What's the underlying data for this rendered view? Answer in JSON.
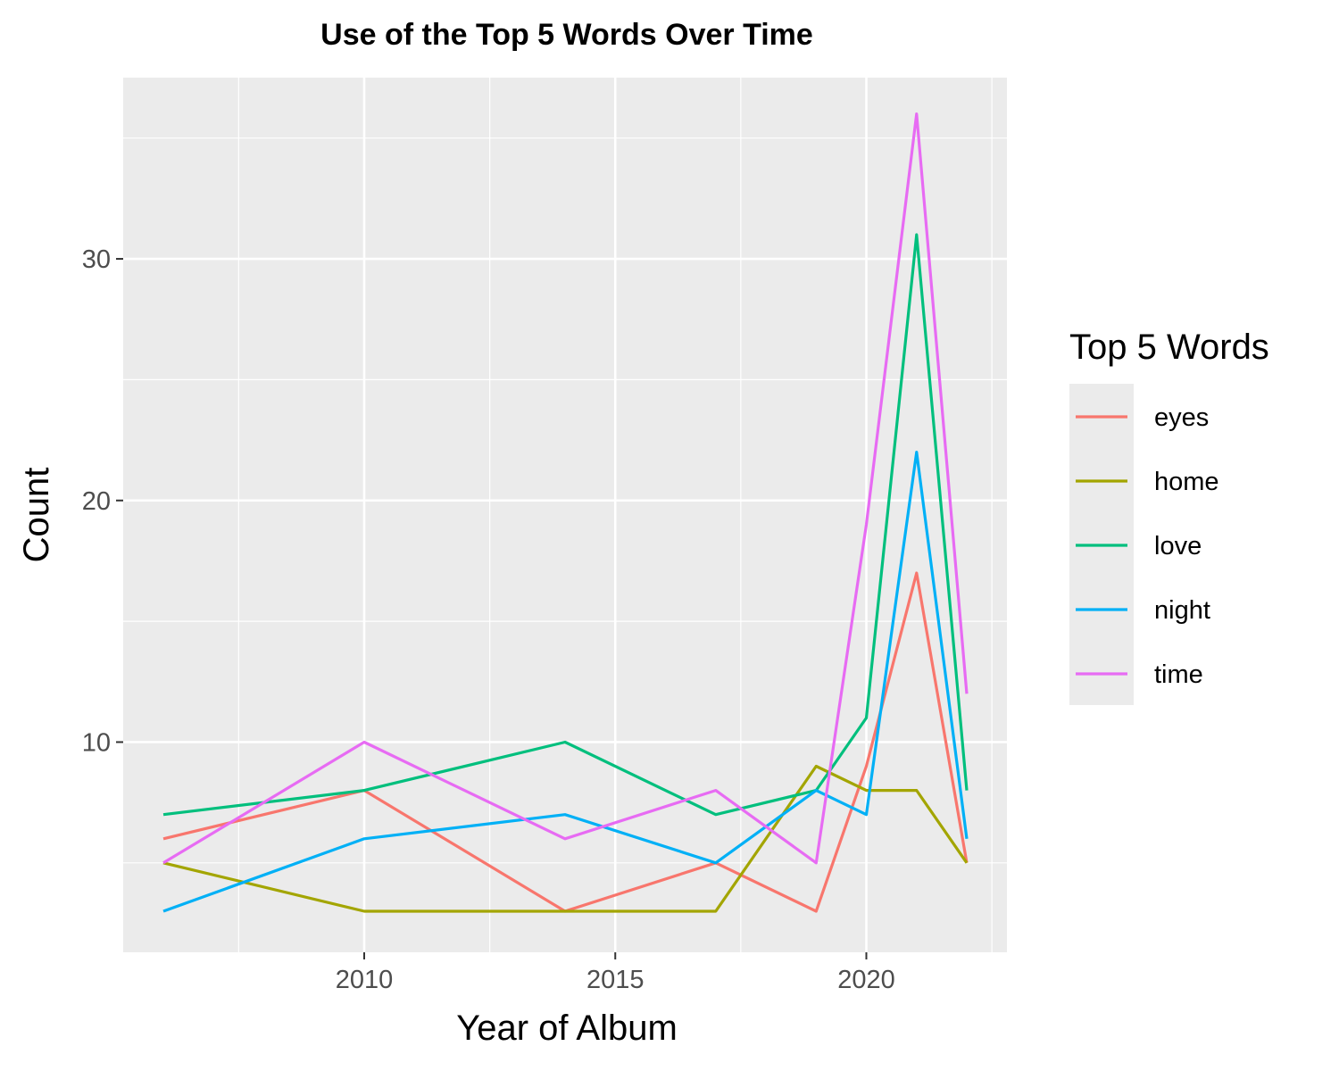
{
  "chart_data": {
    "type": "line",
    "title": "Use of the Top 5 Words Over Time",
    "xlabel": "Year of Album",
    "ylabel": "Count",
    "xlim": [
      2005.2,
      2022.8
    ],
    "ylim": [
      1.3,
      37.5
    ],
    "x_ticks": [
      2010,
      2015,
      2020
    ],
    "x_minor": [
      2007.5,
      2012.5,
      2017.5,
      2022.5
    ],
    "y_ticks": [
      10,
      20,
      30
    ],
    "y_minor": [
      5,
      15,
      25,
      35
    ],
    "grid": true,
    "legend": {
      "title": "Top 5 Words",
      "position": "right"
    },
    "series": [
      {
        "name": "eyes",
        "color": "#F8766D",
        "x": [
          2006,
          2010,
          2014,
          2017,
          2019,
          2020,
          2021,
          2022
        ],
        "y": [
          6,
          8,
          3,
          5,
          3,
          9,
          17,
          5
        ]
      },
      {
        "name": "home",
        "color": "#A3A500",
        "x": [
          2006,
          2010,
          2014,
          2017,
          2019,
          2020,
          2021,
          2022
        ],
        "y": [
          5,
          3,
          3,
          3,
          9,
          8,
          8,
          5
        ]
      },
      {
        "name": "love",
        "color": "#00BF7D",
        "x": [
          2006,
          2010,
          2014,
          2017,
          2019,
          2020,
          2021,
          2022
        ],
        "y": [
          7,
          8,
          10,
          7,
          8,
          11,
          31,
          8
        ]
      },
      {
        "name": "night",
        "color": "#00B0F6",
        "x": [
          2006,
          2010,
          2014,
          2017,
          2019,
          2020,
          2021,
          2022
        ],
        "y": [
          3,
          6,
          7,
          5,
          8,
          7,
          22,
          6
        ]
      },
      {
        "name": "time",
        "color": "#E76BF3",
        "x": [
          2006,
          2010,
          2014,
          2017,
          2019,
          2020,
          2021,
          2022
        ],
        "y": [
          5,
          10,
          6,
          8,
          5,
          19,
          36,
          12
        ]
      }
    ]
  }
}
